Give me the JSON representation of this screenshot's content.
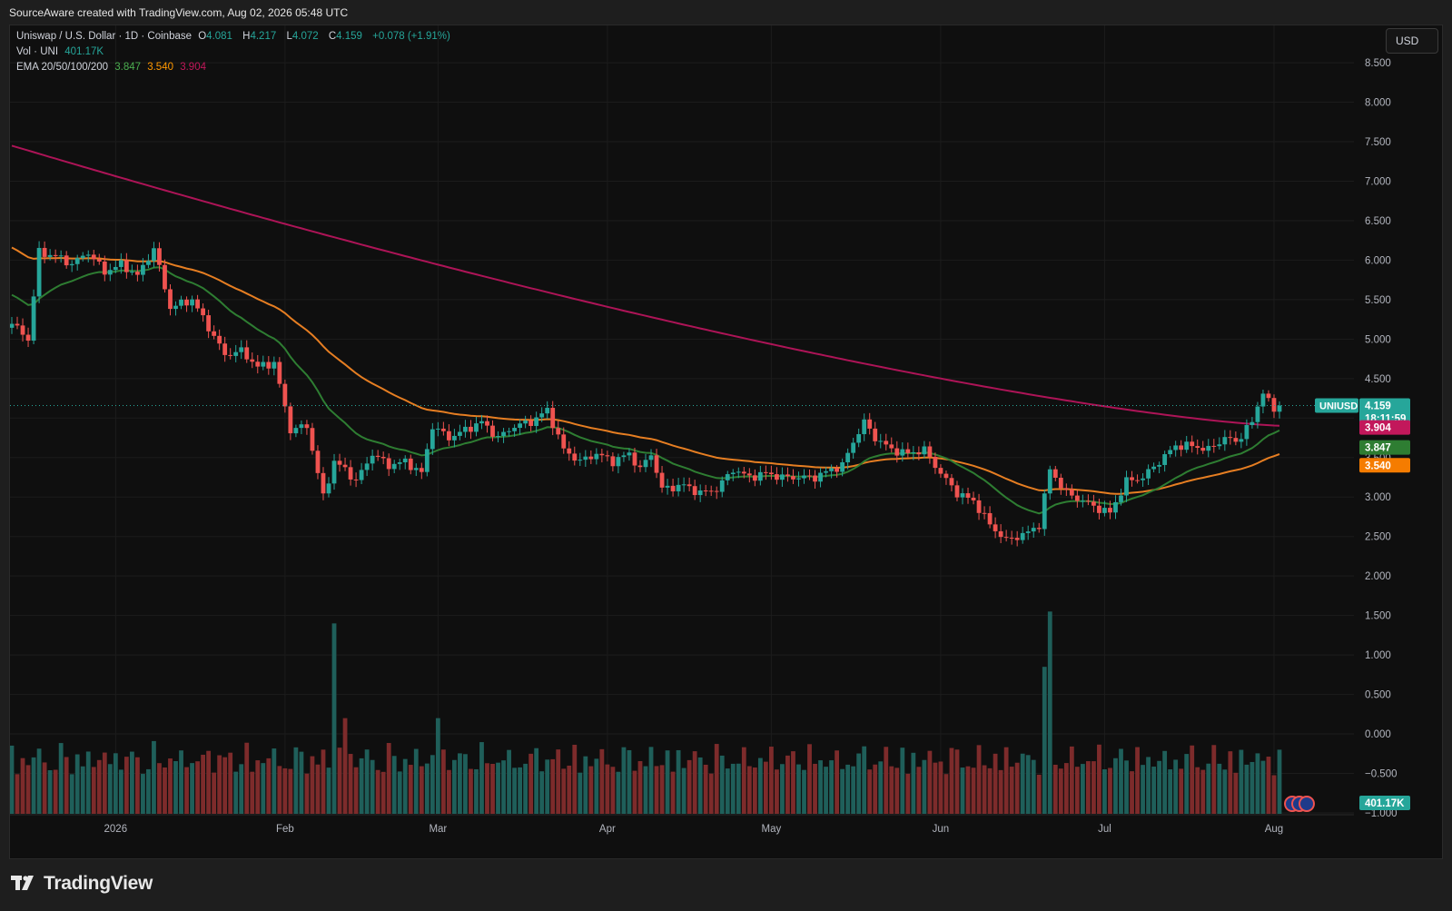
{
  "header": {
    "credit": "SourceAware created with TradingView.com, Aug 02, 2026 05:48 UTC"
  },
  "legend": {
    "symbol": "Uniswap / U.S. Dollar · 1D · Coinbase",
    "o_label": "O",
    "o_value": "4.081",
    "h_label": "H",
    "h_value": "4.217",
    "l_label": "L",
    "l_value": "4.072",
    "c_label": "C",
    "c_value": "4.159",
    "change": "+0.078 (+1.91%)",
    "vol_label": "Vol · UNI",
    "vol_value": "401.17K",
    "ema_label": "EMA 20/50/100/200",
    "ema20": "3.847",
    "ema50": "3.540",
    "ema200": "3.904"
  },
  "currency_button": "USD",
  "colors": {
    "up": "#26a69a",
    "down": "#ef5350",
    "ema20": "#2e7d32",
    "ema50": "#e67e22",
    "ema200": "#ad1457",
    "vol_up": "#1f5f5a",
    "vol_down": "#7d2b2b",
    "grid": "#1c1c1c",
    "background": "#0f0f0f"
  },
  "price_tags": {
    "symbol_tag": "UNIUSD",
    "price": "4.159",
    "countdown": "18:11:59",
    "ema200": "3.904",
    "ema20": "3.847",
    "ema50": "3.540",
    "volume": "401.17K"
  },
  "footer": {
    "brand": "TradingView",
    "logo": "tradingview-logo-icon"
  },
  "chart_data": {
    "type": "candlestick",
    "title": "Uniswap / U.S. Dollar · 1D · Coinbase",
    "x_range": [
      "2025-12-13",
      "2026-08-02"
    ],
    "y_range": [
      -1.0,
      8.8
    ],
    "y_ticks": [
      8.5,
      8.0,
      7.5,
      7.0,
      6.5,
      6.0,
      5.5,
      5.0,
      4.5,
      4.0,
      3.5,
      3.0,
      2.5,
      2.0,
      1.5,
      1.0,
      0.5,
      0.0,
      -0.5,
      -1.0
    ],
    "y_tick_labels": [
      "8.500",
      "8.000",
      "7.500",
      "7.000",
      "6.500",
      "6.000",
      "5.500",
      "5.000",
      "4.500",
      "4.000",
      "3.500",
      "3.000",
      "2.500",
      "2.000",
      "1.500",
      "1.000",
      "0.500",
      "0.000",
      "−0.500",
      "−1.000"
    ],
    "x_ticks": [
      {
        "label": "2026",
        "date": "2026-01-01"
      },
      {
        "label": "Feb",
        "date": "2026-02-01"
      },
      {
        "label": "Mar",
        "date": "2026-03-01"
      },
      {
        "label": "Apr",
        "date": "2026-04-01"
      },
      {
        "label": "May",
        "date": "2026-05-01"
      },
      {
        "label": "Jun",
        "date": "2026-06-01"
      },
      {
        "label": "Jul",
        "date": "2026-07-01"
      },
      {
        "label": "Aug",
        "date": "2026-08-01"
      }
    ],
    "close_anchors": [
      {
        "date": "2025-12-13",
        "close": 5.2
      },
      {
        "date": "2025-12-16",
        "close": 5.0
      },
      {
        "date": "2025-12-18",
        "close": 6.1
      },
      {
        "date": "2025-12-21",
        "close": 6.05
      },
      {
        "date": "2025-12-24",
        "close": 5.95
      },
      {
        "date": "2025-12-27",
        "close": 6.1
      },
      {
        "date": "2025-12-30",
        "close": 5.85
      },
      {
        "date": "2026-01-02",
        "close": 5.95
      },
      {
        "date": "2026-01-05",
        "close": 5.8
      },
      {
        "date": "2026-01-08",
        "close": 6.15
      },
      {
        "date": "2026-01-11",
        "close": 5.4
      },
      {
        "date": "2026-01-15",
        "close": 5.5
      },
      {
        "date": "2026-01-18",
        "close": 5.15
      },
      {
        "date": "2026-01-21",
        "close": 4.8
      },
      {
        "date": "2026-01-24",
        "close": 4.85
      },
      {
        "date": "2026-01-27",
        "close": 4.65
      },
      {
        "date": "2026-01-30",
        "close": 4.7
      },
      {
        "date": "2026-02-02",
        "close": 3.85
      },
      {
        "date": "2026-02-05",
        "close": 3.9
      },
      {
        "date": "2026-02-08",
        "close": 3.0
      },
      {
        "date": "2026-02-10",
        "close": 3.45
      },
      {
        "date": "2026-02-12",
        "close": 3.35
      },
      {
        "date": "2026-02-14",
        "close": 3.2
      },
      {
        "date": "2026-02-17",
        "close": 3.55
      },
      {
        "date": "2026-02-20",
        "close": 3.4
      },
      {
        "date": "2026-02-23",
        "close": 3.45
      },
      {
        "date": "2026-02-26",
        "close": 3.3
      },
      {
        "date": "2026-02-28",
        "close": 3.9
      },
      {
        "date": "2026-03-03",
        "close": 3.75
      },
      {
        "date": "2026-03-06",
        "close": 3.85
      },
      {
        "date": "2026-03-09",
        "close": 3.95
      },
      {
        "date": "2026-03-12",
        "close": 3.75
      },
      {
        "date": "2026-03-15",
        "close": 3.9
      },
      {
        "date": "2026-03-18",
        "close": 3.95
      },
      {
        "date": "2026-03-21",
        "close": 4.1
      },
      {
        "date": "2026-03-24",
        "close": 3.6
      },
      {
        "date": "2026-03-27",
        "close": 3.45
      },
      {
        "date": "2026-03-30",
        "close": 3.55
      },
      {
        "date": "2026-04-02",
        "close": 3.45
      },
      {
        "date": "2026-04-05",
        "close": 3.55
      },
      {
        "date": "2026-04-07",
        "close": 3.35
      },
      {
        "date": "2026-04-09",
        "close": 3.55
      },
      {
        "date": "2026-04-11",
        "close": 3.1
      },
      {
        "date": "2026-04-15",
        "close": 3.15
      },
      {
        "date": "2026-04-18",
        "close": 3.05
      },
      {
        "date": "2026-04-21",
        "close": 3.1
      },
      {
        "date": "2026-04-24",
        "close": 3.35
      },
      {
        "date": "2026-04-27",
        "close": 3.25
      },
      {
        "date": "2026-04-30",
        "close": 3.3
      },
      {
        "date": "2026-05-03",
        "close": 3.25
      },
      {
        "date": "2026-05-06",
        "close": 3.25
      },
      {
        "date": "2026-05-09",
        "close": 3.25
      },
      {
        "date": "2026-05-12",
        "close": 3.35
      },
      {
        "date": "2026-05-14",
        "close": 3.4
      },
      {
        "date": "2026-05-16",
        "close": 3.7
      },
      {
        "date": "2026-05-18",
        "close": 3.95
      },
      {
        "date": "2026-05-20",
        "close": 3.75
      },
      {
        "date": "2026-05-23",
        "close": 3.6
      },
      {
        "date": "2026-05-26",
        "close": 3.55
      },
      {
        "date": "2026-05-29",
        "close": 3.6
      },
      {
        "date": "2026-06-01",
        "close": 3.3
      },
      {
        "date": "2026-06-04",
        "close": 3.05
      },
      {
        "date": "2026-06-07",
        "close": 2.95
      },
      {
        "date": "2026-06-10",
        "close": 2.65
      },
      {
        "date": "2026-06-13",
        "close": 2.45
      },
      {
        "date": "2026-06-17",
        "close": 2.55
      },
      {
        "date": "2026-06-19",
        "close": 2.65
      },
      {
        "date": "2026-06-21",
        "close": 3.35
      },
      {
        "date": "2026-06-24",
        "close": 3.05
      },
      {
        "date": "2026-06-27",
        "close": 2.95
      },
      {
        "date": "2026-06-30",
        "close": 2.85
      },
      {
        "date": "2026-07-02",
        "close": 2.8
      },
      {
        "date": "2026-07-05",
        "close": 3.2
      },
      {
        "date": "2026-07-08",
        "close": 3.25
      },
      {
        "date": "2026-07-11",
        "close": 3.45
      },
      {
        "date": "2026-07-14",
        "close": 3.65
      },
      {
        "date": "2026-07-17",
        "close": 3.65
      },
      {
        "date": "2026-07-20",
        "close": 3.6
      },
      {
        "date": "2026-07-23",
        "close": 3.75
      },
      {
        "date": "2026-07-25",
        "close": 3.7
      },
      {
        "date": "2026-07-28",
        "close": 3.95
      },
      {
        "date": "2026-07-30",
        "close": 4.35
      },
      {
        "date": "2026-07-31",
        "close": 4.2
      },
      {
        "date": "2026-08-01",
        "close": 4.081
      },
      {
        "date": "2026-08-02",
        "close": 4.159
      }
    ],
    "volume_spikes": [
      {
        "date": "2026-02-10",
        "value": 1.4
      },
      {
        "date": "2026-02-12",
        "value": 0.2
      },
      {
        "date": "2026-03-01",
        "value": 0.2
      },
      {
        "date": "2026-06-20",
        "value": 0.85
      },
      {
        "date": "2026-06-21",
        "value": 1.55
      }
    ],
    "series": [
      {
        "name": "EMA 20",
        "last": 3.847
      },
      {
        "name": "EMA 50",
        "last": 3.54
      },
      {
        "name": "EMA 200",
        "last": 3.904,
        "start": 7.45
      }
    ],
    "last_price": 4.159,
    "last_volume": "401.17K"
  }
}
